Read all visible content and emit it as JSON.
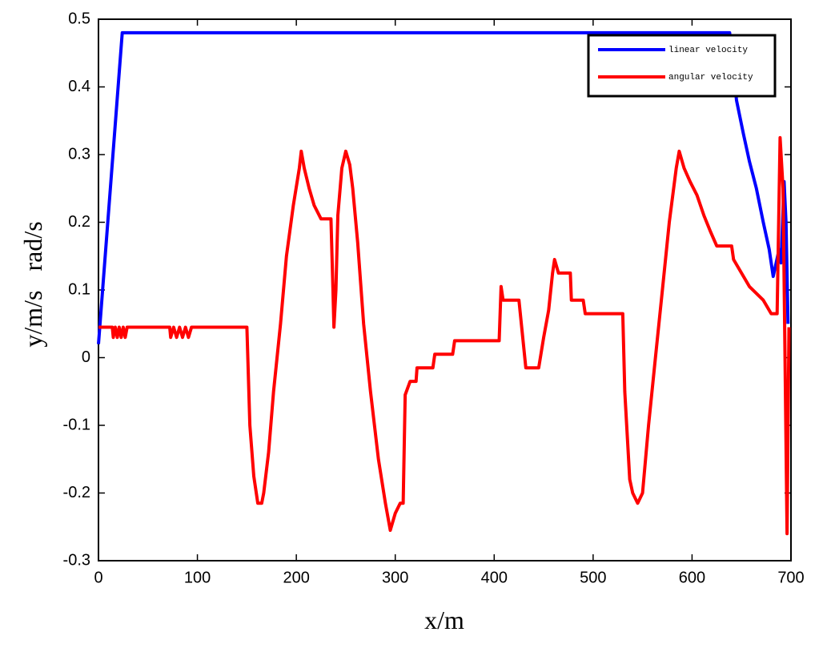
{
  "chart_data": {
    "type": "line",
    "xlabel": "x/m",
    "ylabel": "y/m/s   rad/s",
    "xlim": [
      0,
      700
    ],
    "xticks": [
      0,
      100,
      200,
      300,
      400,
      500,
      600,
      700
    ],
    "ylim": [
      -0.3,
      0.5
    ],
    "yticks": [
      -0.3,
      -0.2,
      -0.1,
      0,
      0.1,
      0.2,
      0.3,
      0.4,
      0.5
    ],
    "legend": "upper right",
    "series": [
      {
        "name": "linear velocity",
        "color": "#0000ff",
        "x": [
          0,
          24,
          638,
          645,
          652,
          658,
          665,
          672,
          678,
          682,
          688,
          690,
          693,
          695,
          697
        ],
        "values": [
          0.02,
          0.48,
          0.48,
          0.38,
          0.33,
          0.29,
          0.25,
          0.2,
          0.16,
          0.12,
          0.16,
          0.14,
          0.26,
          0.2,
          0.05
        ]
      },
      {
        "name": "angular velocity",
        "color": "#ff0000",
        "x": [
          0,
          14,
          15,
          17,
          19,
          21,
          23,
          25,
          27,
          29,
          72,
          73,
          76,
          79,
          82,
          85,
          88,
          91,
          94,
          150,
          153,
          157,
          161,
          165,
          167,
          172,
          177,
          184,
          190,
          197,
          203,
          205,
          208,
          213,
          218,
          225,
          235,
          237,
          238,
          240,
          242,
          246,
          250,
          254,
          257,
          262,
          268,
          275,
          283,
          290,
          295,
          300,
          305,
          308,
          310,
          315,
          321,
          322,
          338,
          340,
          358,
          360,
          405,
          407,
          409,
          425,
          432,
          445,
          450,
          455,
          459,
          461,
          465,
          477,
          478,
          490,
          492,
          530,
          532,
          537,
          540,
          545,
          550,
          556,
          563,
          570,
          577,
          584,
          587,
          592,
          598,
          605,
          612,
          619,
          625,
          640,
          642,
          650,
          658,
          672,
          680,
          686,
          689,
          692,
          696,
          698
        ],
        "values": [
          0.045,
          0.045,
          0.03,
          0.045,
          0.03,
          0.045,
          0.03,
          0.045,
          0.03,
          0.045,
          0.045,
          0.03,
          0.045,
          0.03,
          0.045,
          0.03,
          0.045,
          0.03,
          0.045,
          0.045,
          -0.1,
          -0.175,
          -0.215,
          -0.215,
          -0.2,
          -0.14,
          -0.05,
          0.05,
          0.15,
          0.225,
          0.28,
          0.305,
          0.28,
          0.25,
          0.225,
          0.205,
          0.205,
          0.1,
          0.045,
          0.1,
          0.21,
          0.28,
          0.305,
          0.285,
          0.25,
          0.17,
          0.05,
          -0.05,
          -0.15,
          -0.215,
          -0.255,
          -0.23,
          -0.215,
          -0.215,
          -0.055,
          -0.035,
          -0.035,
          -0.015,
          -0.015,
          0.005,
          0.005,
          0.025,
          0.025,
          0.105,
          0.085,
          0.085,
          -0.015,
          -0.015,
          0.03,
          0.07,
          0.125,
          0.145,
          0.125,
          0.125,
          0.085,
          0.085,
          0.065,
          0.065,
          -0.05,
          -0.18,
          -0.2,
          -0.215,
          -0.2,
          -0.1,
          0,
          0.1,
          0.2,
          0.28,
          0.305,
          0.28,
          0.26,
          0.24,
          0.21,
          0.185,
          0.165,
          0.165,
          0.145,
          0.125,
          0.105,
          0.085,
          0.065,
          0.065,
          0.325,
          0.25,
          -0.26,
          0.045
        ]
      }
    ]
  }
}
